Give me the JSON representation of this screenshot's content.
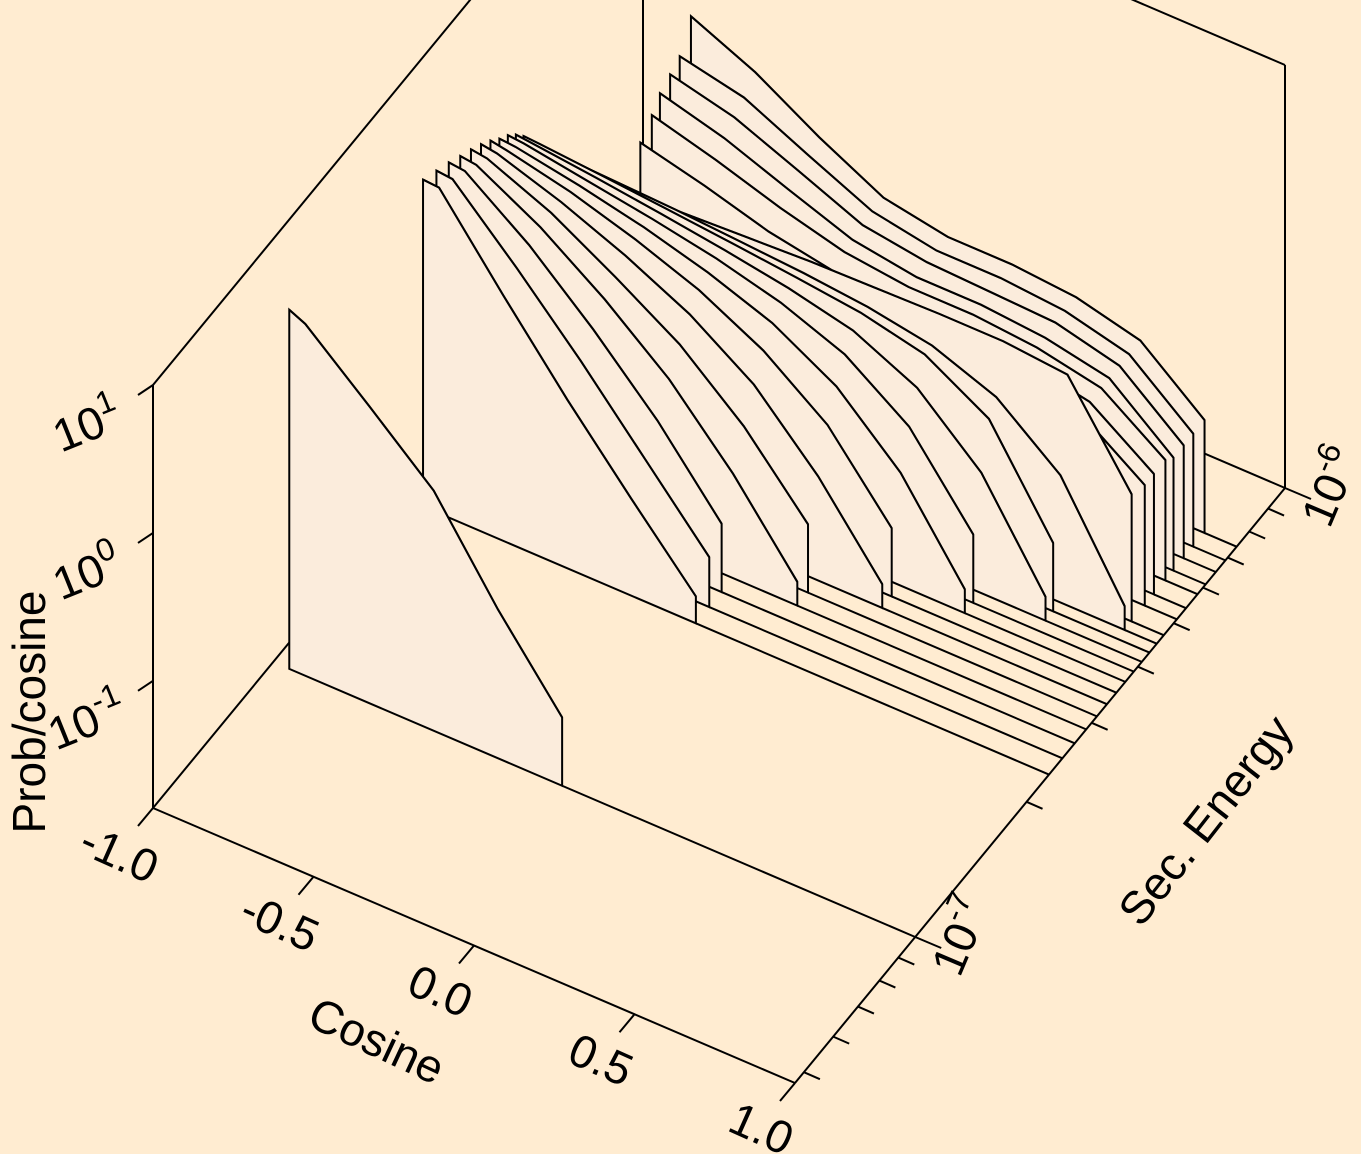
{
  "chart_data": {
    "type": "waterfall3d",
    "background": "#ffecd1",
    "fill": "#fbecdc",
    "stroke": "#000000",
    "x_label": "Cosine",
    "y_label": "Sec. Energy",
    "z_label": "Prob/cosine",
    "xlim": [
      -1,
      1
    ],
    "xticks": [
      {
        "value": -1,
        "label": "-1.0"
      },
      {
        "value": -0.5,
        "label": "-0.5"
      },
      {
        "value": 0,
        "label": "0.0"
      },
      {
        "value": 0.5,
        "label": "0.5"
      },
      {
        "value": 1,
        "label": "1.0"
      }
    ],
    "ylim": [
      4.73e-08,
      1e-06
    ],
    "yscale": "log",
    "yticks": [
      {
        "value": 1e-07,
        "label": "10",
        "exponent": "-7"
      },
      {
        "value": 1e-06,
        "label": "10",
        "exponent": "-6"
      }
    ],
    "yminor": [
      5e-08,
      6e-08,
      7e-08,
      8e-08,
      9e-08,
      2e-07,
      3e-07,
      4e-07,
      5e-07,
      6e-07,
      7e-07,
      8e-07,
      9e-07
    ],
    "zlim": [
      0.0138,
      10
    ],
    "zscale": "log",
    "zticks": [
      {
        "value": 0.1,
        "label": "10",
        "exponent": "-1"
      },
      {
        "value": 1,
        "label": "10",
        "exponent": "0"
      },
      {
        "value": 10,
        "label": "10",
        "exponent": "1"
      }
    ],
    "x": [
      -0.95,
      -0.9,
      -0.7,
      -0.5,
      -0.3,
      -0.1,
      0.1,
      0.3,
      0.5,
      0.7,
      0.9,
      1.0
    ],
    "series": [
      {
        "energy": 1e-07,
        "values": [
          3.7,
          3.3,
          1.4,
          0.58,
          0.14,
          0.04,
          null,
          null,
          null,
          null,
          null,
          null
        ]
      },
      {
        "energy": 2.3e-07,
        "values": [
          2.24,
          2.2,
          0.63,
          0.19,
          0.062,
          0.021,
          null,
          null,
          null,
          null,
          null,
          null
        ]
      },
      {
        "energy": 2.5e-07,
        "values": [
          2.0,
          1.95,
          0.75,
          0.27,
          0.09,
          0.03,
          null,
          null,
          null,
          null,
          null,
          null
        ]
      },
      {
        "energy": 2.7e-07,
        "values": [
          1.8,
          1.75,
          0.85,
          0.35,
          0.13,
          0.04,
          null,
          null,
          null,
          null,
          null,
          null
        ]
      },
      {
        "energy": 2.9e-07,
        "values": [
          1.6,
          1.55,
          0.9,
          0.45,
          0.2,
          0.07,
          0.02,
          null,
          null,
          null,
          null,
          null
        ]
      },
      {
        "energy": 3.1e-07,
        "values": [
          1.45,
          1.4,
          0.92,
          0.52,
          0.28,
          0.12,
          0.04,
          null,
          null,
          null,
          null,
          null
        ]
      },
      {
        "energy": 3.3e-07,
        "values": [
          1.3,
          1.25,
          0.9,
          0.6,
          0.37,
          0.19,
          0.07,
          0.02,
          null,
          null,
          null,
          null
        ]
      },
      {
        "energy": 3.5e-07,
        "values": [
          1.15,
          1.1,
          0.88,
          0.65,
          0.45,
          0.27,
          0.13,
          0.04,
          null,
          null,
          null,
          null
        ]
      },
      {
        "energy": 3.7e-07,
        "values": [
          1.0,
          0.98,
          0.82,
          0.66,
          0.5,
          0.35,
          0.2,
          0.08,
          0.02,
          null,
          null,
          null
        ]
      },
      {
        "energy": 3.9e-07,
        "values": [
          0.9,
          0.88,
          0.75,
          0.64,
          0.53,
          0.41,
          0.28,
          0.14,
          0.04,
          null,
          null,
          null
        ]
      },
      {
        "energy": 4.1e-07,
        "values": [
          0.78,
          0.76,
          0.68,
          0.6,
          0.52,
          0.44,
          0.35,
          0.22,
          0.09,
          0.02,
          null,
          null
        ]
      },
      {
        "energy": 4.3e-07,
        "values": [
          0.66,
          0.65,
          0.6,
          0.55,
          0.5,
          0.45,
          0.4,
          0.32,
          0.18,
          0.04,
          null,
          null
        ]
      },
      {
        "energy": 4.5e-07,
        "values": [
          0.52,
          0.52,
          0.5,
          0.48,
          0.45,
          0.42,
          0.38,
          0.32,
          0.22,
          0.1,
          0.02,
          null
        ]
      },
      {
        "energy": 4.7e-07,
        "values": [
          0.39,
          0.39,
          0.39,
          0.4,
          0.42,
          0.44,
          0.45,
          0.46,
          0.46,
          0.42,
          0.1,
          null
        ]
      },
      {
        "energy": 5.1e-07,
        "values": [
          null,
          null,
          0.29,
          0.27,
          0.25,
          0.23,
          0.22,
          0.22,
          0.21,
          0.18,
          0.09,
          null
        ]
      },
      {
        "energy": 5.4e-07,
        "values": [
          null,
          null,
          0.51,
          0.4,
          0.3,
          0.25,
          0.23,
          0.23,
          0.22,
          0.18,
          0.09,
          null
        ]
      },
      {
        "energy": 5.8e-07,
        "values": [
          null,
          null,
          0.63,
          0.48,
          0.35,
          0.27,
          0.24,
          0.24,
          0.22,
          0.18,
          0.09,
          null
        ]
      },
      {
        "energy": 6.1e-07,
        "values": [
          null,
          null,
          0.76,
          0.58,
          0.4,
          0.28,
          0.24,
          0.24,
          0.22,
          0.18,
          0.08,
          null
        ]
      },
      {
        "energy": 6.5e-07,
        "values": [
          null,
          null,
          0.84,
          0.66,
          0.44,
          0.29,
          0.25,
          0.24,
          0.23,
          0.18,
          0.08,
          null
        ]
      },
      {
        "energy": 6.9e-07,
        "values": [
          null,
          null,
          0.93,
          0.75,
          0.47,
          0.3,
          0.25,
          0.25,
          0.23,
          0.18,
          0.08,
          null
        ]
      },
      {
        "energy": 7.4e-07,
        "values": [
          null,
          null,
          1.4,
          0.9,
          0.5,
          0.3,
          0.25,
          0.25,
          0.23,
          0.18,
          0.08,
          null
        ]
      }
    ]
  }
}
